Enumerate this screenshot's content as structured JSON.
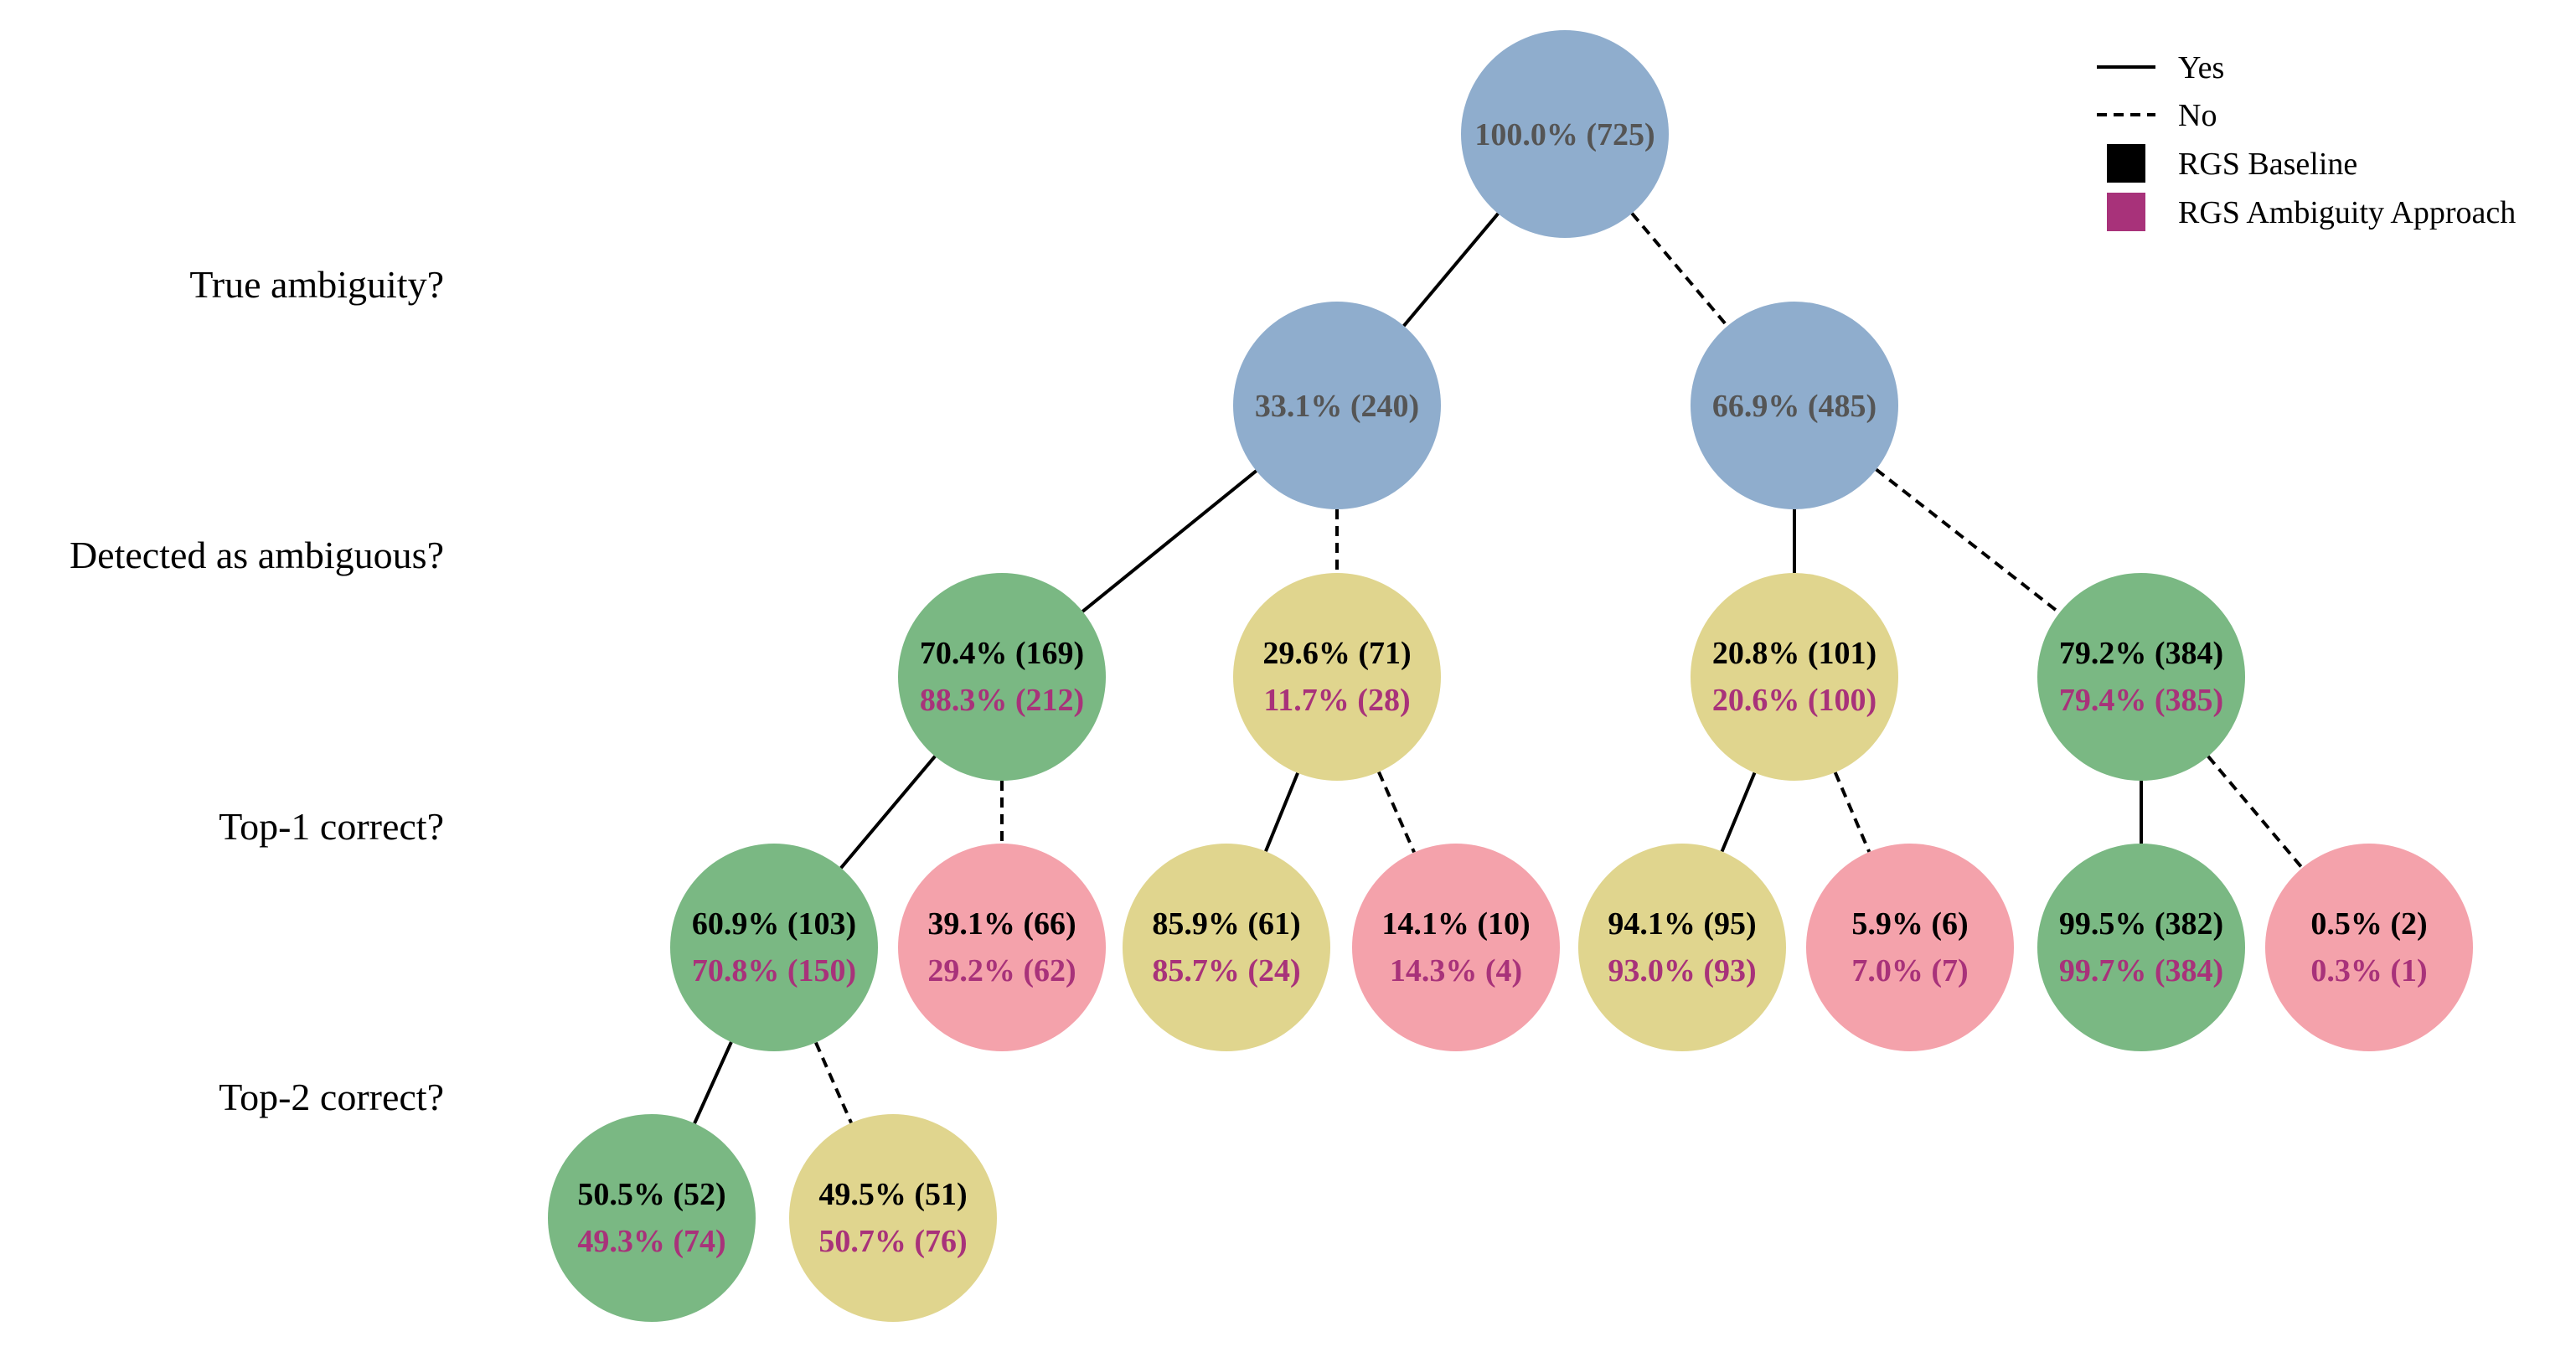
{
  "level_labels": [
    "True ambiguity?",
    "Detected as ambiguous?",
    "Top-1 correct?",
    "Top-2 correct?"
  ],
  "legend": {
    "yes": "Yes",
    "no": "No",
    "baseline": "RGS Baseline",
    "ambiguity": "RGS Ambiguity Approach"
  },
  "colors": {
    "blue": "#8fadcd",
    "green": "#7ab883",
    "yellow": "#e0d58e",
    "pink": "#f4a2ab",
    "baseline_text": "#000000",
    "ambiguity_text": "#a8327a",
    "root_text": "#555555"
  },
  "nodes": [
    {
      "id": "root",
      "color": "blue",
      "line1": "100.0% (725)",
      "line2": ""
    },
    {
      "id": "ambig-yes",
      "color": "blue",
      "line1": "33.1% (240)",
      "line2": ""
    },
    {
      "id": "ambig-no",
      "color": "blue",
      "line1": "66.9% (485)",
      "line2": ""
    },
    {
      "id": "ay-detected",
      "color": "green",
      "line1": "70.4% (169)",
      "line2": "88.3% (212)"
    },
    {
      "id": "ay-notdetected",
      "color": "yellow",
      "line1": "29.6% (71)",
      "line2": "11.7% (28)"
    },
    {
      "id": "an-detected",
      "color": "yellow",
      "line1": "20.8% (101)",
      "line2": "20.6% (100)"
    },
    {
      "id": "an-notdetected",
      "color": "green",
      "line1": "79.2% (384)",
      "line2": "79.4% (385)"
    },
    {
      "id": "ayd-top1yes",
      "color": "green",
      "line1": "60.9% (103)",
      "line2": "70.8% (150)"
    },
    {
      "id": "ayd-top1no",
      "color": "pink",
      "line1": "39.1% (66)",
      "line2": "29.2% (62)"
    },
    {
      "id": "ayn-top1yes",
      "color": "yellow",
      "line1": "85.9% (61)",
      "line2": "85.7% (24)"
    },
    {
      "id": "ayn-top1no",
      "color": "pink",
      "line1": "14.1% (10)",
      "line2": "14.3% (4)"
    },
    {
      "id": "and-top1yes",
      "color": "yellow",
      "line1": "94.1% (95)",
      "line2": "93.0% (93)"
    },
    {
      "id": "and-top1no",
      "color": "pink",
      "line1": "5.9% (6)",
      "line2": "7.0% (7)"
    },
    {
      "id": "ann-top1yes",
      "color": "green",
      "line1": "99.5% (382)",
      "line2": "99.7% (384)"
    },
    {
      "id": "ann-top1no",
      "color": "pink",
      "line1": "0.5% (2)",
      "line2": "0.3% (1)"
    },
    {
      "id": "top2yes",
      "color": "green",
      "line1": "50.5% (52)",
      "line2": "49.3% (74)"
    },
    {
      "id": "top2no",
      "color": "yellow",
      "line1": "49.5% (51)",
      "line2": "50.7% (76)"
    }
  ],
  "edges": [
    {
      "from": "root",
      "to": "ambig-yes",
      "type": "yes"
    },
    {
      "from": "root",
      "to": "ambig-no",
      "type": "no"
    },
    {
      "from": "ambig-yes",
      "to": "ay-detected",
      "type": "yes"
    },
    {
      "from": "ambig-yes",
      "to": "ay-notdetected",
      "type": "no"
    },
    {
      "from": "ambig-no",
      "to": "an-detected",
      "type": "yes"
    },
    {
      "from": "ambig-no",
      "to": "an-notdetected",
      "type": "no"
    },
    {
      "from": "ay-detected",
      "to": "ayd-top1yes",
      "type": "yes"
    },
    {
      "from": "ay-detected",
      "to": "ayd-top1no",
      "type": "no"
    },
    {
      "from": "ay-notdetected",
      "to": "ayn-top1yes",
      "type": "yes"
    },
    {
      "from": "ay-notdetected",
      "to": "ayn-top1no",
      "type": "no"
    },
    {
      "from": "an-detected",
      "to": "and-top1yes",
      "type": "yes"
    },
    {
      "from": "an-detected",
      "to": "and-top1no",
      "type": "no"
    },
    {
      "from": "an-notdetected",
      "to": "ann-top1yes",
      "type": "yes"
    },
    {
      "from": "an-notdetected",
      "to": "ann-top1no",
      "type": "no"
    },
    {
      "from": "ayd-top1yes",
      "to": "top2yes",
      "type": "yes"
    },
    {
      "from": "ayd-top1yes",
      "to": "top2no",
      "type": "no"
    }
  ]
}
